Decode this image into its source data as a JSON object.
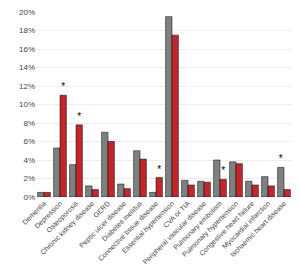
{
  "chart_data": {
    "type": "bar",
    "categories": [
      "Dementia",
      "Depression",
      "Osteoporosis",
      "Chronic kidney disease",
      "GERD",
      "Peptic ulcer disease",
      "Diabetes mellitus",
      "Connective tissue disease",
      "Essential hypertension",
      "CVA or TIA",
      "Peripheral vascular disease",
      "Pulmonary embolism",
      "Pulmonary hypertension",
      "Congestive heart failure",
      "Myocardial infarction",
      "Ischaemic heart disease"
    ],
    "series": [
      {
        "color": "#808080",
        "values": [
          0.5,
          5.3,
          3.5,
          1.2,
          7.0,
          1.4,
          5.0,
          0.5,
          19.5,
          1.8,
          1.7,
          4.0,
          3.8,
          1.7,
          2.2,
          3.2
        ],
        "annotations": [
          null,
          null,
          null,
          null,
          null,
          null,
          null,
          null,
          null,
          null,
          null,
          null,
          null,
          null,
          null,
          "*"
        ]
      },
      {
        "color": "#c0282d",
        "values": [
          0.5,
          11.0,
          7.8,
          0.8,
          6.0,
          0.9,
          4.1,
          2.1,
          17.5,
          1.3,
          1.6,
          1.9,
          3.6,
          1.3,
          1.2,
          0.8
        ],
        "annotations": [
          null,
          "*",
          "*",
          null,
          null,
          null,
          null,
          "*",
          null,
          null,
          null,
          "*",
          null,
          null,
          null,
          null
        ]
      }
    ],
    "ylim": [
      0,
      20
    ],
    "yticks": [
      {
        "value": 0,
        "label": "0%"
      },
      {
        "value": 2,
        "label": "2%"
      },
      {
        "value": 4,
        "label": "4%"
      },
      {
        "value": 6,
        "label": "6%"
      },
      {
        "value": 8,
        "label": "8%"
      },
      {
        "value": 10,
        "label": "10%"
      },
      {
        "value": 12,
        "label": "12%"
      },
      {
        "value": 14,
        "label": "14%"
      },
      {
        "value": 16,
        "label": "16%"
      },
      {
        "value": 18,
        "label": "18%"
      },
      {
        "value": 20,
        "label": "20%"
      }
    ],
    "grid": true
  }
}
